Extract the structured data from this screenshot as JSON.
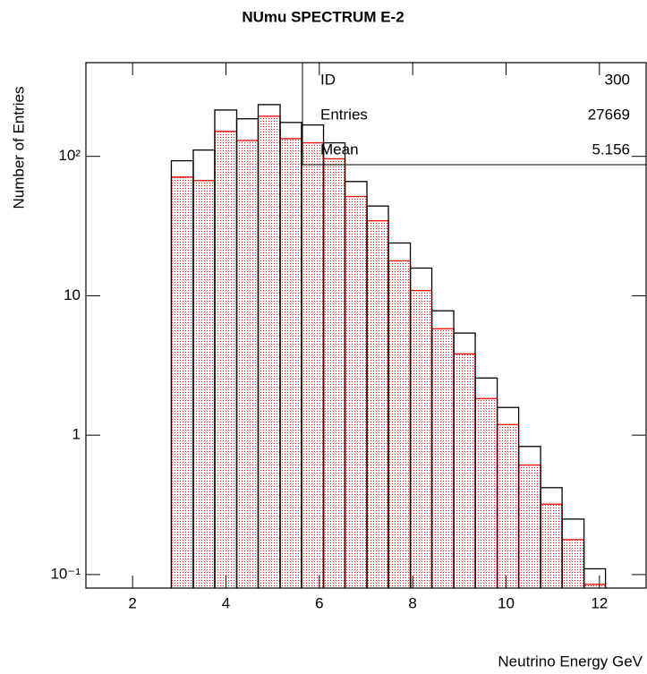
{
  "chart_data": {
    "type": "histogram",
    "title": "NUmu SPECTRUM E-2",
    "x_label": "Neutrino Energy GeV",
    "y_label": "Number of Entries",
    "bins": [
      2.83,
      3.3,
      3.76,
      4.23,
      4.69,
      5.16,
      5.62,
      6.09,
      6.55,
      7.02,
      7.48,
      7.95,
      8.41,
      8.88,
      9.34,
      9.81,
      10.27,
      10.74,
      11.2,
      11.67,
      12.13
    ],
    "series": [
      {
        "color": "#000000",
        "fill": "none",
        "values": [
          93,
          111,
          215,
          186,
          235,
          175,
          168,
          125,
          66,
          44,
          23.9,
          15.8,
          7.8,
          5.4,
          2.57,
          1.58,
          0.83,
          0.42,
          0.25,
          0.11
        ]
      },
      {
        "color": "#ff0000",
        "fill": "dots",
        "values": [
          71,
          67,
          151,
          130,
          194,
          134,
          125,
          96,
          51.5,
          34.5,
          17.8,
          10.9,
          5.8,
          3.83,
          1.83,
          1.19,
          0.61,
          0.32,
          0.178,
          0.085
        ]
      }
    ],
    "xlim": [
      1,
      13
    ],
    "xticks": [
      2,
      4,
      6,
      8,
      10,
      12
    ],
    "ylim": [
      0.08,
      470
    ],
    "yticks": [
      {
        "value": 0.1,
        "label": "10⁻¹"
      },
      1,
      10,
      {
        "value": 100,
        "label": "10²"
      }
    ],
    "log_y": true,
    "stats_box": [
      {
        "label": "ID",
        "value": 300
      },
      {
        "label": "Entries",
        "value": 27669
      },
      {
        "label": "Mean",
        "value": 5.156
      }
    ]
  }
}
